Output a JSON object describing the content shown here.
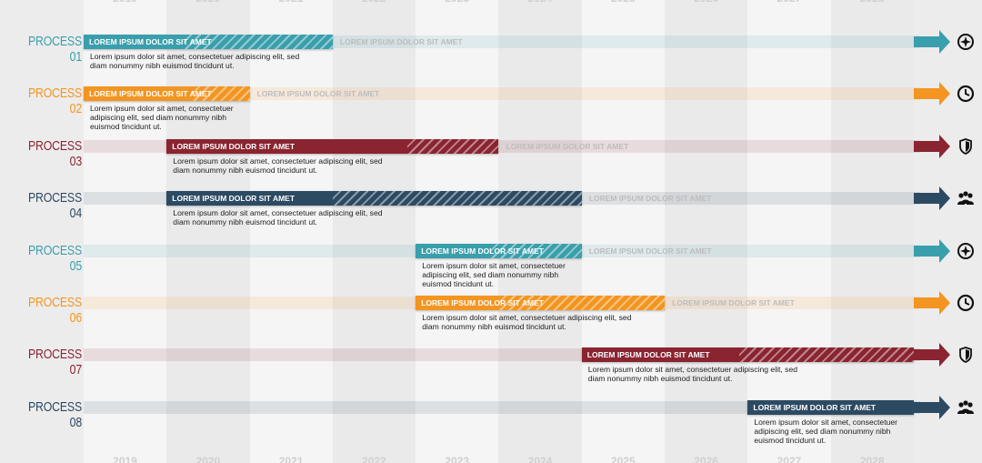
{
  "years": [
    "2019",
    "2020",
    "2021",
    "2022",
    "2023",
    "2024",
    "2025",
    "2026",
    "2027",
    "2028"
  ],
  "track_text": "LOREM IPSUM DOLOR SIT AMET",
  "colors": {
    "teal": "#3a9fac",
    "orange": "#f39520",
    "red": "#8a2431",
    "navy": "#2d4a63"
  },
  "processes": [
    {
      "label": "PROCESS 01",
      "color": "teal",
      "start_year": 2019,
      "solid_end_year": 2020.2,
      "end_year": 2022,
      "bar_text": "LOREM IPSUM DOLOR SIT AMET",
      "desc": "Lorem ipsum dolor sit amet, consectetuer adipiscing elit, sed\ndiam nonummy nibh euismod tincidunt ut.",
      "icon": "compass-icon"
    },
    {
      "label": "PROCESS 02",
      "color": "orange",
      "start_year": 2019,
      "solid_end_year": 2020.3,
      "end_year": 2021,
      "bar_text": "LOREM IPSUM DOLOR SIT AMET",
      "desc": "Lorem ipsum dolor sit amet, consectetuer\nadipiscing elit, sed diam nonummy nibh\neuismod tincidunt ut.",
      "icon": "clock-icon"
    },
    {
      "label": "PROCESS 03",
      "color": "red",
      "start_year": 2020,
      "solid_end_year": 2022.9,
      "end_year": 2024,
      "bar_text": "LOREM IPSUM DOLOR SIT AMET",
      "desc": "Lorem ipsum dolor sit amet, consectetuer adipiscing elit, sed\ndiam nonummy nibh euismod tincidunt ut.",
      "icon": "shield-icon"
    },
    {
      "label": "PROCESS 04",
      "color": "navy",
      "start_year": 2020,
      "solid_end_year": 2022,
      "end_year": 2025,
      "bar_text": "LOREM IPSUM DOLOR SIT AMET",
      "desc": "Lorem ipsum dolor sit amet, consectetuer adipiscing elit, sed\ndiam nonummy nibh euismod tincidunt ut.",
      "icon": "team-icon"
    },
    {
      "label": "PROCESS 05",
      "color": "teal",
      "start_year": 2023,
      "solid_end_year": 2023.9,
      "end_year": 2025,
      "bar_text": "LOREM IPSUM DOLOR SIT AMET",
      "desc": "Lorem ipsum dolor sit amet, consectetuer\nadipiscing elit, sed diam nonummy nibh\neuismod tincidunt ut.",
      "icon": "compass-icon"
    },
    {
      "label": "PROCESS 06",
      "color": "orange",
      "start_year": 2023,
      "solid_end_year": 2024.0,
      "end_year": 2026,
      "bar_text": "LOREM IPSUM DOLOR SIT AMET",
      "desc": "Lorem ipsum dolor sit amet, consectetuer adipiscing elit, sed\ndiam nonummy nibh euismod tincidunt ut.",
      "icon": "clock-icon"
    },
    {
      "label": "PROCESS 07",
      "color": "red",
      "start_year": 2025,
      "solid_end_year": 2026.9,
      "end_year": 2029,
      "bar_text": "LOREM IPSUM DOLOR SIT AMET",
      "desc": "Lorem ipsum dolor sit amet, consectetuer adipiscing elit, sed\ndiam nonummy nibh euismod tincidunt ut.",
      "icon": "shield-icon"
    },
    {
      "label": "PROCESS 08",
      "color": "navy",
      "start_year": 2027,
      "solid_end_year": 2029,
      "end_year": 2029,
      "bar_text": "LOREM IPSUM DOLOR SIT AMET",
      "desc": "Lorem ipsum dolor sit amet, consectetuer\nadipiscing elit, sed diam nonummy nibh\neuismod tincidunt ut.",
      "icon": "team-icon"
    }
  ]
}
